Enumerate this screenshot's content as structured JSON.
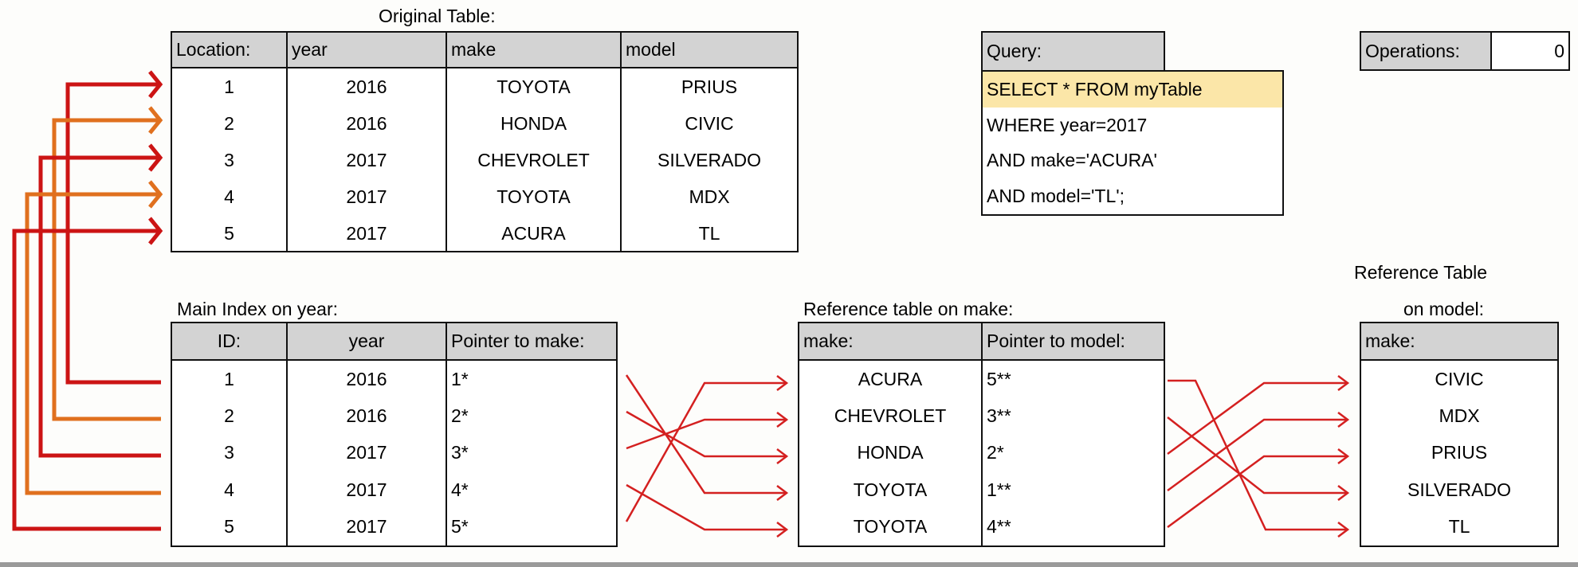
{
  "original_table": {
    "title": "Original Table:",
    "headers": [
      "Location:",
      "year",
      "make",
      "model"
    ],
    "rows": [
      [
        "1",
        "2016",
        "TOYOTA",
        "PRIUS"
      ],
      [
        "2",
        "2016",
        "HONDA",
        "CIVIC"
      ],
      [
        "3",
        "2017",
        "CHEVROLET",
        "SILVERADO"
      ],
      [
        "4",
        "2017",
        "TOYOTA",
        "MDX"
      ],
      [
        "5",
        "2017",
        "ACURA",
        "TL"
      ]
    ]
  },
  "query": {
    "header": "Query:",
    "lines": [
      "SELECT * FROM myTable",
      "WHERE year=2017",
      "AND make='ACURA'",
      "AND model='TL';"
    ],
    "highlight_color": "#fbe6a8"
  },
  "operations": {
    "label": "Operations:",
    "value": "0"
  },
  "main_index": {
    "title": "Main Index on year:",
    "headers": [
      "ID:",
      "year",
      "Pointer to make:"
    ],
    "rows": [
      [
        "1",
        "2016",
        "1*"
      ],
      [
        "2",
        "2016",
        "2*"
      ],
      [
        "3",
        "2017",
        "3*"
      ],
      [
        "4",
        "2017",
        "4*"
      ],
      [
        "5",
        "2017",
        "5*"
      ]
    ]
  },
  "ref_make": {
    "title": "Reference table on make:",
    "headers": [
      "make:",
      "Pointer to model:"
    ],
    "rows": [
      [
        "ACURA",
        "5**"
      ],
      [
        "CHEVROLET",
        "3**"
      ],
      [
        "HONDA",
        "2*"
      ],
      [
        "TOYOTA",
        "1**"
      ],
      [
        "TOYOTA",
        "4**"
      ]
    ]
  },
  "ref_model": {
    "title_line1": "Reference Table",
    "title_line2": "on model:",
    "headers": [
      "make:"
    ],
    "rows": [
      [
        "CIVIC"
      ],
      [
        "MDX"
      ],
      [
        "PRIUS"
      ],
      [
        "SILVERADO"
      ],
      [
        "TL"
      ]
    ]
  },
  "colors": {
    "red": "#cc1414",
    "orange": "#e0701e",
    "thin_red": "#d42020",
    "header_gray": "#d3d3d3"
  }
}
